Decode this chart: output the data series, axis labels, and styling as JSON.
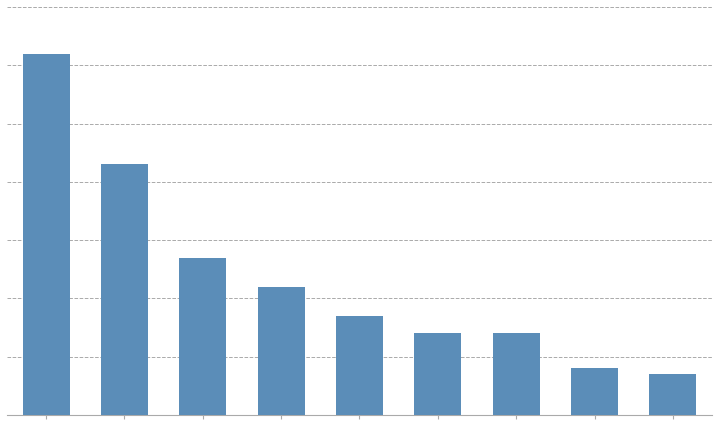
{
  "values": [
    62,
    43,
    27,
    22,
    17,
    14,
    14,
    8,
    7
  ],
  "bar_color": "#5B8DB8",
  "background_color": "#ffffff",
  "plot_background": "#ffffff",
  "grid_color": "#aaaaaa",
  "ylim": [
    0,
    70
  ],
  "yticks": [
    0,
    10,
    20,
    30,
    40,
    50,
    60,
    70
  ],
  "figsize": [
    7.19,
    4.26
  ],
  "dpi": 100
}
